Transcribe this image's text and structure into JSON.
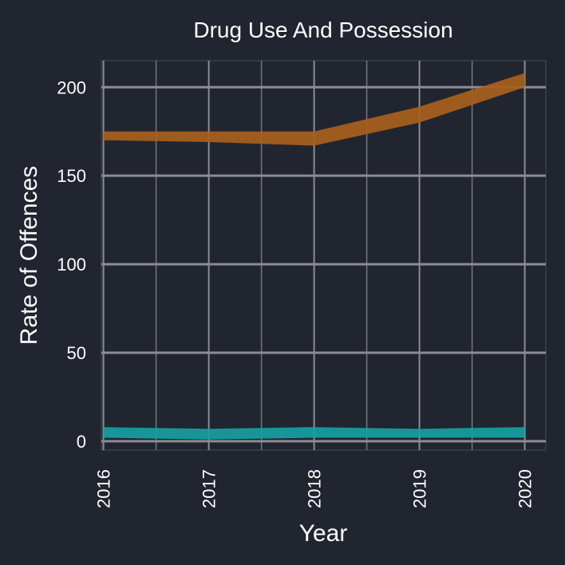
{
  "chart_data": {
    "type": "area",
    "title": "Drug Use And Possession",
    "xlabel": "Year",
    "ylabel": "Rate of Offences",
    "x": [
      "2016",
      "2017",
      "2018",
      "2019",
      "2020"
    ],
    "xlim": [
      2015.98,
      2020.2
    ],
    "ylim": [
      -5,
      215
    ],
    "yticks": [
      0,
      50,
      100,
      150,
      200
    ],
    "grid": true,
    "legend": "none",
    "series": [
      {
        "color": "#a8601c",
        "lower": [
          170,
          169,
          167,
          180,
          200
        ],
        "upper": [
          175,
          175,
          175,
          189,
          208
        ]
      },
      {
        "color": "#17a0a3",
        "lower": [
          2,
          1,
          2,
          2,
          2
        ],
        "upper": [
          8,
          7,
          8,
          7,
          8
        ]
      }
    ]
  },
  "colors": {
    "background": "#21252f",
    "panel_border": "#3a3f4a",
    "grid_major": "#8a8d92",
    "text": "#ffffff"
  }
}
